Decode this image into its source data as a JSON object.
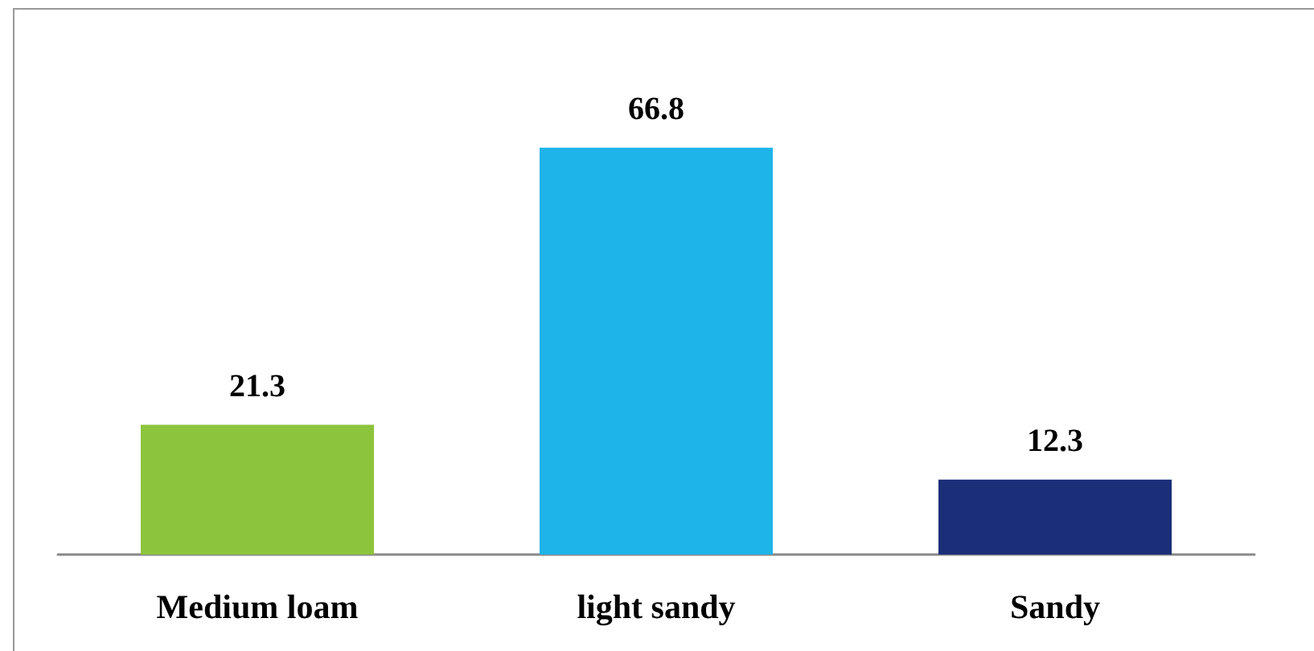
{
  "chart_data": {
    "type": "bar",
    "categories": [
      "Medium loam",
      "light sandy",
      "Sandy"
    ],
    "values": [
      21.3,
      66.8,
      12.3
    ],
    "colors": [
      "#8cc43c",
      "#1eb4ea",
      "#1a2f78"
    ],
    "data_labels": true
  }
}
